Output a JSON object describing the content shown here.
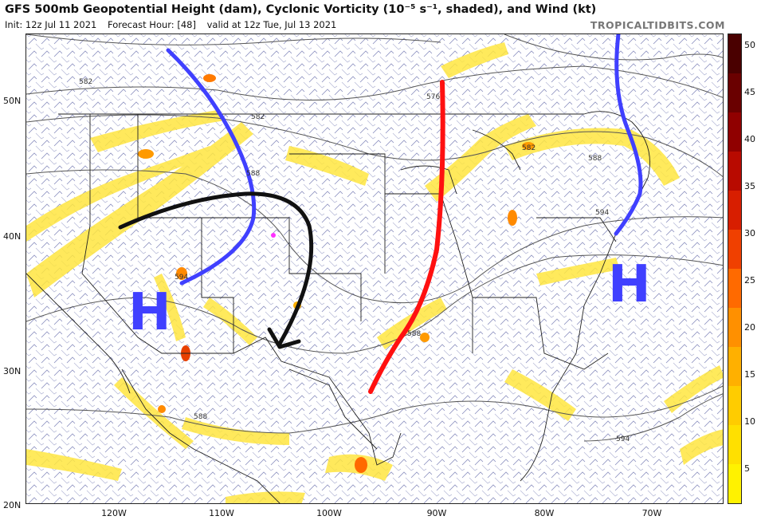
{
  "header": {
    "title": "GFS 500mb Geopotential Height (dam), Cyclonic Vorticity (10⁻⁵ s⁻¹, shaded), and Wind (kt)",
    "init": "Init: 12z Jul 11 2021",
    "forecast_hour": "Forecast Hour: [48]",
    "valid": "valid at 12z Tue, Jul 13 2021",
    "brand": "TROPICALTIDBITS.COM"
  },
  "axes": {
    "lat_labels": [
      "50N",
      "40N",
      "30N",
      "20N"
    ],
    "lon_labels": [
      "120W",
      "110W",
      "100W",
      "90W",
      "80W",
      "70W"
    ]
  },
  "colorbar": {
    "ticks": [
      "50",
      "45",
      "40",
      "35",
      "30",
      "25",
      "20",
      "15",
      "10",
      "5"
    ],
    "colors": [
      "#fff200",
      "#ffe000",
      "#ffcc00",
      "#ffb000",
      "#ff9000",
      "#ff6a00",
      "#f04000",
      "#d81e00",
      "#b80a00",
      "#900000",
      "#6a0000",
      "#4a0000"
    ]
  },
  "contours": {
    "labels": [
      "582",
      "582",
      "588",
      "594",
      "576",
      "582",
      "588",
      "594",
      "588",
      "588",
      "594"
    ]
  },
  "annotations": {
    "high_west": "H",
    "high_east": "H"
  }
}
